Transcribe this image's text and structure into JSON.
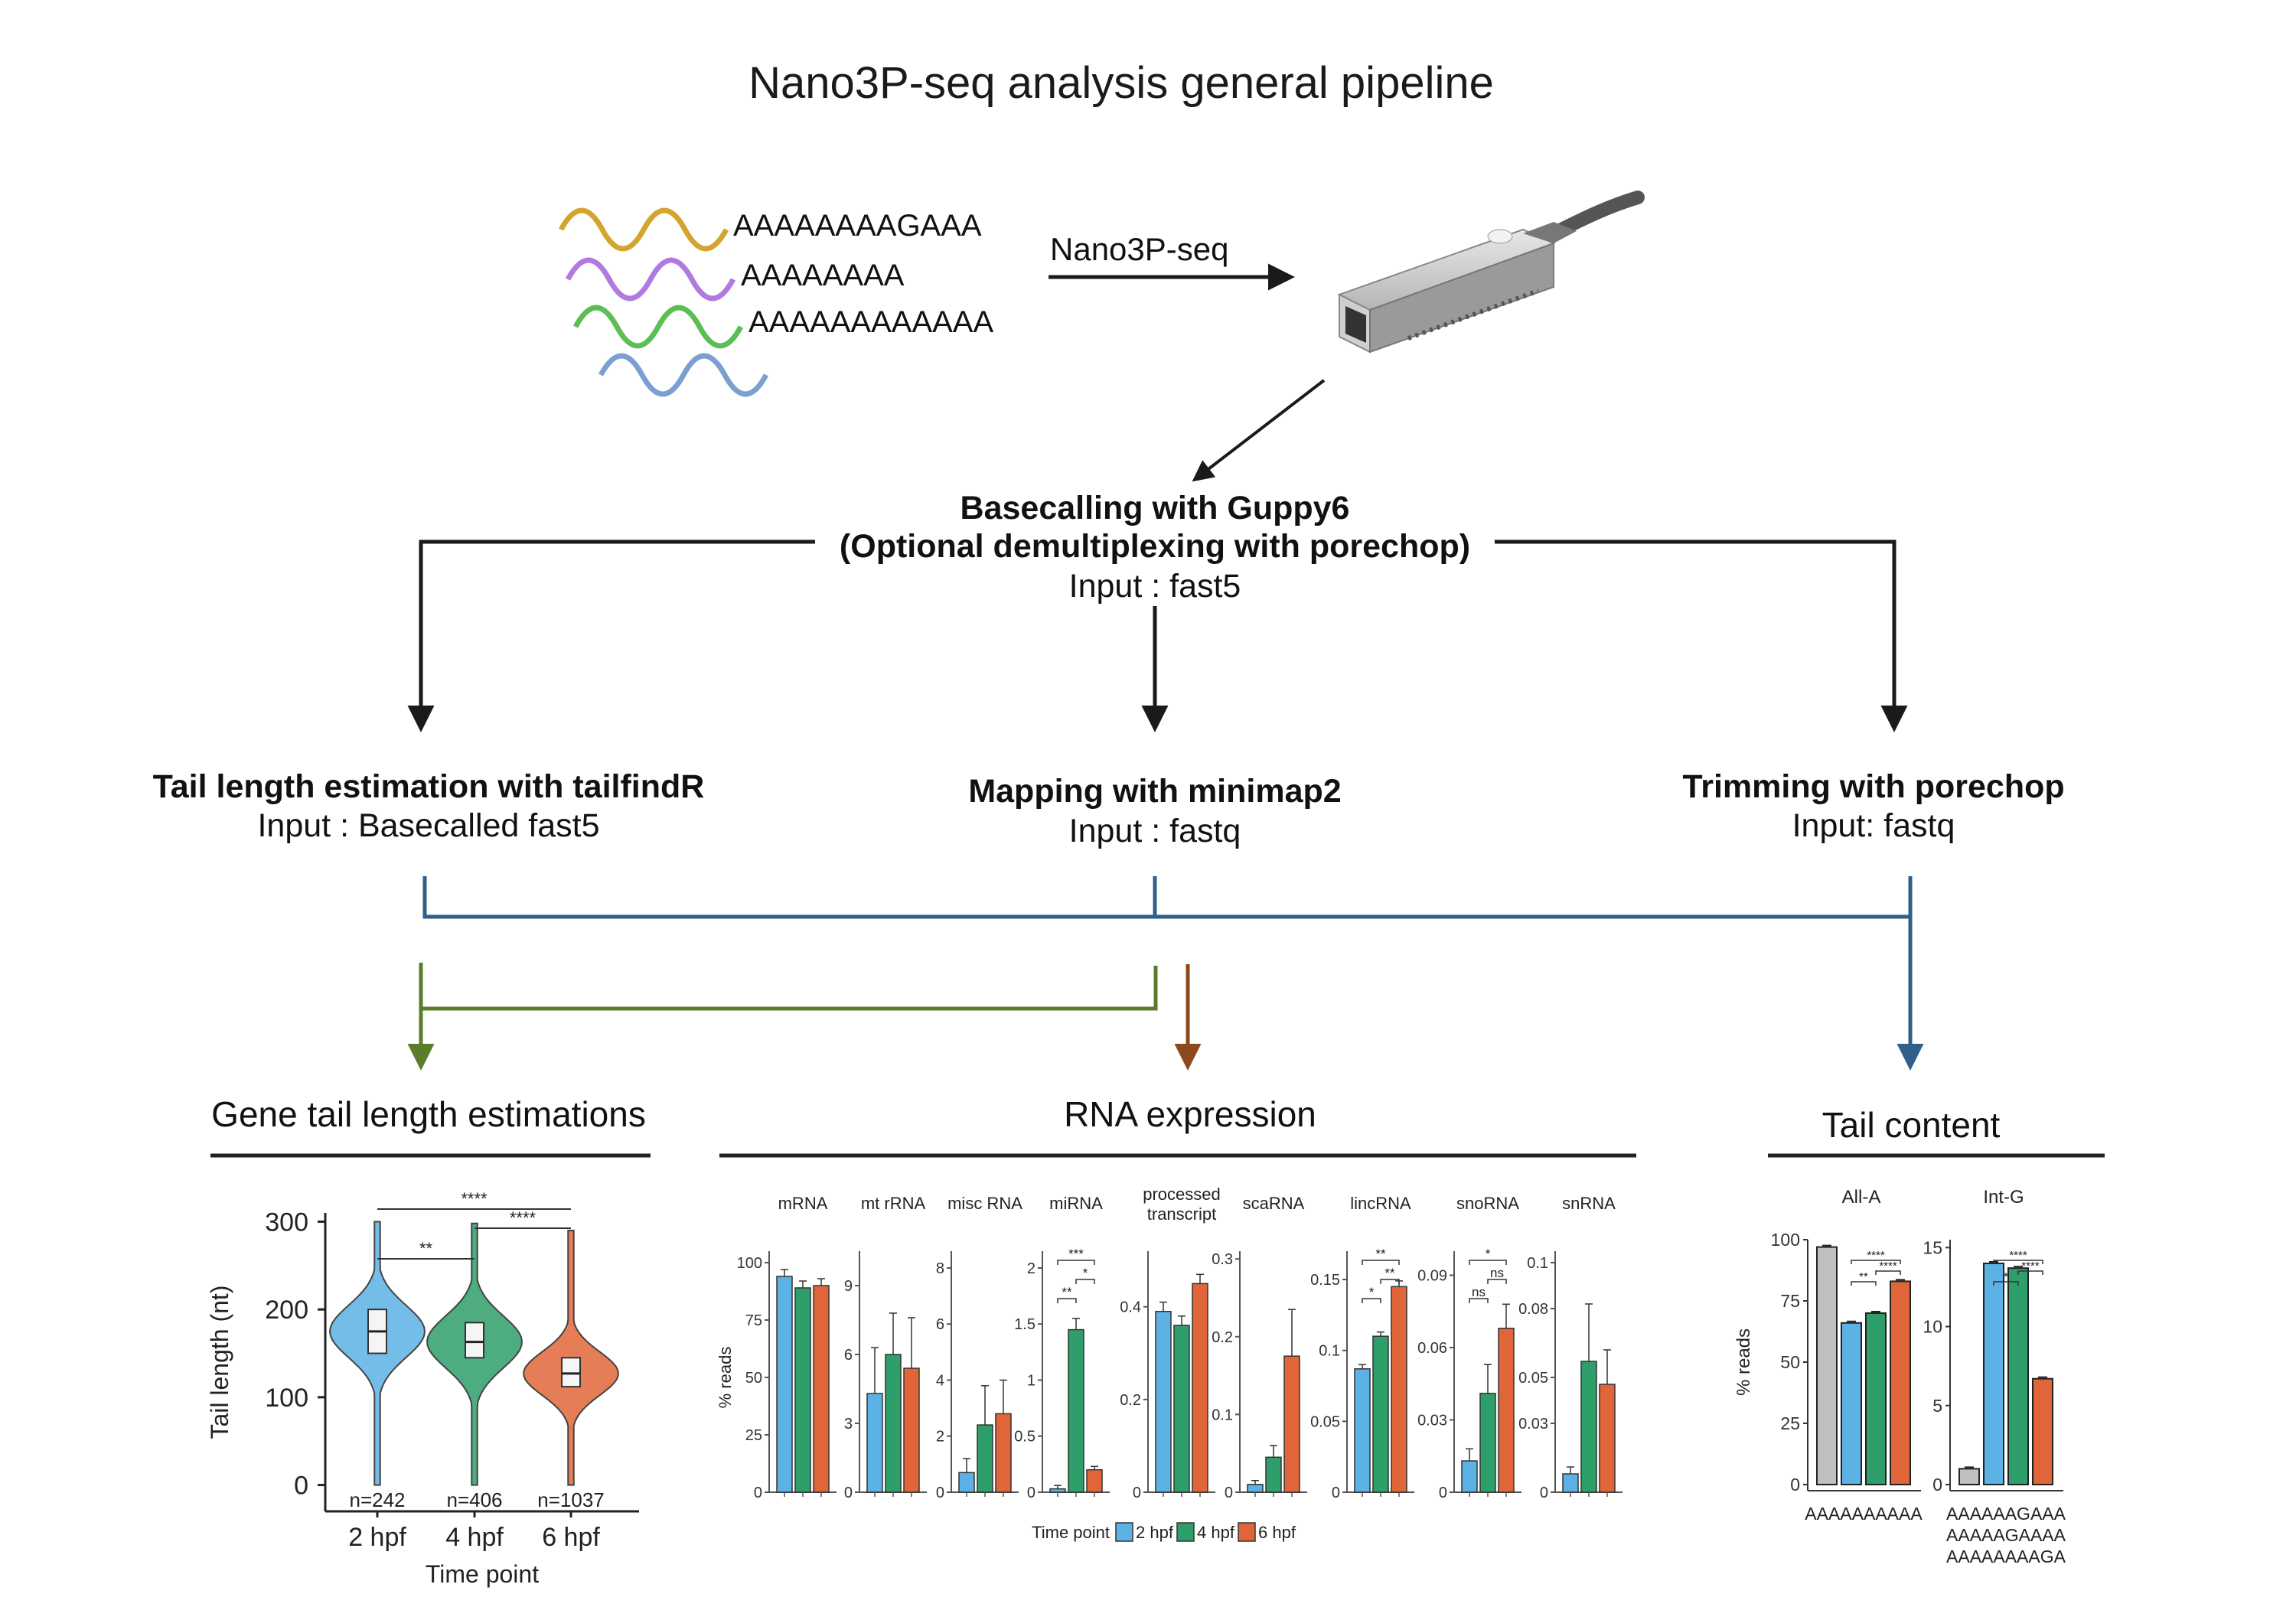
{
  "title": "Nano3P-seq analysis general pipeline",
  "input_reads": [
    {
      "sequence": "AAAAAAAAGAAA",
      "color": "#d4a52e"
    },
    {
      "sequence": "AAAAAAAA",
      "color": "#b27ae0"
    },
    {
      "sequence": "AAAAAAAAAAAA",
      "color": "#5bbf53"
    },
    {
      "sequence": "",
      "color": "#7b9fd1"
    }
  ],
  "sequencer_arrow_label": "Nano3P-seq",
  "basecalling": {
    "line1": "Basecalling with Guppy6",
    "line2": "(Optional demultiplexing with porechop)",
    "input": "Input : fast5"
  },
  "steps": {
    "tail": {
      "title": "Tail length estimation with tailfindR",
      "input": "Input : Basecalled fast5"
    },
    "mapping": {
      "title": "Mapping with minimap2",
      "input": "Input : fastq"
    },
    "trimming": {
      "title": "Trimming with porechop",
      "input": "Input: fastq"
    }
  },
  "colors": {
    "blue_line": "#2f5f8a",
    "green_line": "#5a7d2a",
    "brown_line": "#8b4a1e",
    "black": "#1a1a1a",
    "hpf2": "#5cb2e5",
    "hpf4": "#2e9e6a",
    "hpf6": "#e0663a",
    "grey": "#c0c0c0"
  },
  "panels": {
    "gene_tail": "Gene tail length estimations",
    "rna_expression": "RNA expression",
    "tail_content": "Tail content"
  },
  "chart_data": [
    {
      "type": "violin",
      "ylabel": "Tail length (nt)",
      "xlabel": "Time point",
      "ylim": [
        -30,
        310
      ],
      "yticks": [
        0,
        100,
        200,
        300
      ],
      "categories": [
        "2 hpf",
        "4 hpf",
        "6 hpf"
      ],
      "medians": [
        175,
        163,
        127
      ],
      "q1": [
        150,
        145,
        112
      ],
      "q3": [
        200,
        185,
        145
      ],
      "counts": [
        "n=242",
        "n=406",
        "n=1037"
      ],
      "significance": [
        {
          "from": 0,
          "to": 1,
          "label": "**"
        },
        {
          "from": 0,
          "to": 2,
          "label": "****"
        },
        {
          "from": 1,
          "to": 2,
          "label": "****"
        }
      ]
    },
    {
      "type": "bar",
      "ylabel": "% reads",
      "xlabel": "Time point",
      "legend": [
        "2 hpf",
        "4 hpf",
        "6 hpf"
      ],
      "facets": [
        {
          "name": "mRNA",
          "ticks": [
            0,
            25,
            50,
            75,
            100
          ],
          "ymax": 105,
          "values": [
            94,
            89,
            90
          ],
          "err": [
            3,
            3,
            3
          ],
          "sig": []
        },
        {
          "name": "mt rRNA",
          "ticks": [
            0,
            3,
            6,
            9
          ],
          "ymax": 10.5,
          "values": [
            4.3,
            6,
            5.4
          ],
          "err": [
            2,
            1.8,
            2.2
          ],
          "sig": []
        },
        {
          "name": "misc RNA",
          "ticks": [
            0,
            2,
            4,
            6,
            8
          ],
          "ymax": 8.6,
          "values": [
            0.7,
            2.4,
            2.8
          ],
          "err": [
            0.5,
            1.4,
            1.2
          ],
          "sig": []
        },
        {
          "name": "miRNA",
          "ticks": [
            0.0,
            0.5,
            1.0,
            1.5,
            2.0
          ],
          "ymax": 2.15,
          "values": [
            0.03,
            1.45,
            0.2
          ],
          "err": [
            0.03,
            0.1,
            0.03
          ],
          "sig": [
            {
              "from": 0,
              "to": 1,
              "label": "**",
              "level": 0
            },
            {
              "from": 1,
              "to": 2,
              "label": "*",
              "level": 1
            },
            {
              "from": 0,
              "to": 2,
              "label": "***",
              "level": 2
            }
          ]
        },
        {
          "name": "processed transcript",
          "ticks": [
            0.0,
            0.2,
            0.4
          ],
          "ymax": 0.52,
          "values": [
            0.39,
            0.36,
            0.45
          ],
          "err": [
            0.02,
            0.02,
            0.02
          ],
          "sig": []
        },
        {
          "name": "scaRNA",
          "ticks": [
            0.0,
            0.1,
            0.2,
            0.3
          ],
          "ymax": 0.31,
          "values": [
            0.01,
            0.045,
            0.175
          ],
          "err": [
            0.005,
            0.015,
            0.06
          ],
          "sig": []
        },
        {
          "name": "lincRNA",
          "ticks": [
            0.0,
            0.05,
            0.1,
            0.15
          ],
          "ymax": 0.17,
          "values": [
            0.087,
            0.11,
            0.145
          ],
          "err": [
            0.003,
            0.003,
            0.004
          ],
          "sig": [
            {
              "from": 0,
              "to": 1,
              "label": "*",
              "level": 0
            },
            {
              "from": 1,
              "to": 2,
              "label": "**",
              "level": 1
            },
            {
              "from": 0,
              "to": 2,
              "label": "**",
              "level": 2
            }
          ]
        },
        {
          "name": "snoRNA",
          "ticks": [
            0.0,
            0.03,
            0.06,
            0.09
          ],
          "ymax": 0.1,
          "values": [
            0.013,
            0.041,
            0.068
          ],
          "err": [
            0.005,
            0.012,
            0.01
          ],
          "sig": [
            {
              "from": 0,
              "to": 1,
              "label": "ns",
              "level": 0
            },
            {
              "from": 1,
              "to": 2,
              "label": "ns",
              "level": 1
            },
            {
              "from": 0,
              "to": 2,
              "label": "*",
              "level": 2
            }
          ]
        },
        {
          "name": "snRNA",
          "ticks": [
            0.0,
            0.03,
            0.05,
            0.08,
            0.1
          ],
          "ymax": 0.105,
          "values": [
            0.008,
            0.057,
            0.047
          ],
          "err": [
            0.003,
            0.025,
            0.015
          ],
          "sig": []
        }
      ]
    },
    {
      "type": "bar",
      "ylabel": "% reads",
      "facets": [
        {
          "name": "All-A",
          "ticks": [
            0,
            25,
            50,
            75,
            100
          ],
          "ymax": 100,
          "values": [
            97,
            66,
            70,
            83
          ],
          "colors": [
            "grey",
            "hpf2",
            "hpf4",
            "hpf6"
          ],
          "xlabels": [
            "AAAAAAAAAA"
          ],
          "sig": [
            {
              "from": 1,
              "to": 2,
              "label": "**",
              "level": 0
            },
            {
              "from": 2,
              "to": 3,
              "label": "****",
              "level": 1
            },
            {
              "from": 1,
              "to": 3,
              "label": "****",
              "level": 2
            }
          ]
        },
        {
          "name": "Int-G",
          "ticks": [
            0,
            5,
            10,
            15
          ],
          "ymax": 15.5,
          "values": [
            1,
            14,
            13.7,
            6.7
          ],
          "colors": [
            "grey",
            "hpf2",
            "hpf4",
            "hpf6"
          ],
          "xlabels": [
            "AAAAAAGAAA",
            "AAAAAGAAAA",
            "AAAAAAAAGA"
          ],
          "sig": [
            {
              "from": 1,
              "to": 2,
              "label": "*",
              "level": 0
            },
            {
              "from": 2,
              "to": 3,
              "label": "****",
              "level": 1
            },
            {
              "from": 1,
              "to": 3,
              "label": "****",
              "level": 2
            }
          ]
        }
      ]
    }
  ]
}
